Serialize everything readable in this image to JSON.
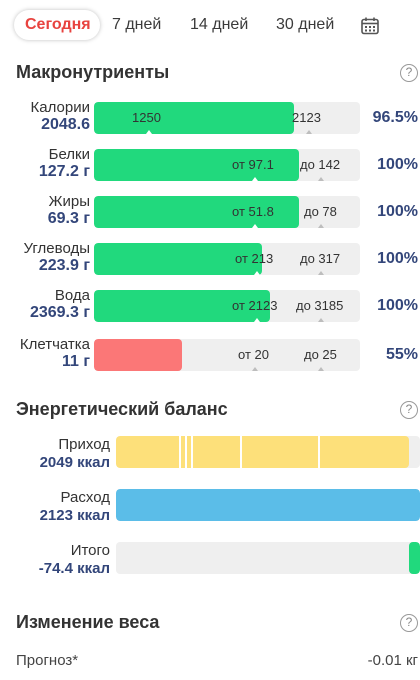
{
  "tabs": [
    {
      "label": "Сегодня",
      "active": true
    },
    {
      "label": "7 дней"
    },
    {
      "label": "14 дней"
    },
    {
      "label": "30 дней"
    }
  ],
  "icons": {
    "calendar": "calendar-icon",
    "help": "help-circle-icon"
  },
  "colors": {
    "accent": "#e8433f",
    "value": "#33467a",
    "green": "#21d97d",
    "red": "#fb7777",
    "yellow": "#fde07a",
    "blue": "#5bbde8",
    "track": "#efefef"
  },
  "macros": {
    "title": "Макронутриенты",
    "help": "?",
    "rows": [
      {
        "name": "Калории",
        "value": "2048.6",
        "fill_fraction": 0.75,
        "color": "green",
        "mark_from": "1250",
        "mark_to": "2123",
        "percent": "96.5%"
      },
      {
        "name": "Белки",
        "value": "127.2 г",
        "fill_fraction": 0.77,
        "color": "green",
        "mark_from": "от 97.1",
        "mark_to": "до 142",
        "percent": "100%"
      },
      {
        "name": "Жиры",
        "value": "69.3 г",
        "fill_fraction": 0.77,
        "color": "green",
        "mark_from": "от 51.8",
        "mark_to": "до 78",
        "percent": "100%"
      },
      {
        "name": "Углеводы",
        "value": "223.9 г",
        "fill_fraction": 0.63,
        "color": "green",
        "mark_from": "от 213",
        "mark_to": "до 317",
        "percent": "100%"
      },
      {
        "name": "Вода",
        "value": "2369.3 г",
        "fill_fraction": 0.66,
        "color": "green",
        "mark_from": "от 2123",
        "mark_to": "до 3185",
        "percent": "100%"
      },
      {
        "name": "Клетчатка",
        "value": "11 г",
        "fill_fraction": 0.33,
        "color": "red",
        "mark_from": "от 20",
        "mark_to": "до 25",
        "percent": "55%"
      }
    ]
  },
  "energy": {
    "title": "Энергетический баланс",
    "help": "?",
    "rows": [
      {
        "name": "Приход",
        "value": "2049 ккал",
        "fill_fraction": 0.965,
        "color": "yellow"
      },
      {
        "name": "Расход",
        "value": "2123 ккал",
        "fill_fraction": 1.0,
        "color": "blue"
      },
      {
        "name": "Итого",
        "value": "-74.4 ккал",
        "fill_fraction": 0.035,
        "color": "green"
      }
    ]
  },
  "weight": {
    "title": "Изменение веса",
    "help": "?",
    "forecast_label": "Прогноз*",
    "forecast_value": "-0.01 кг"
  }
}
